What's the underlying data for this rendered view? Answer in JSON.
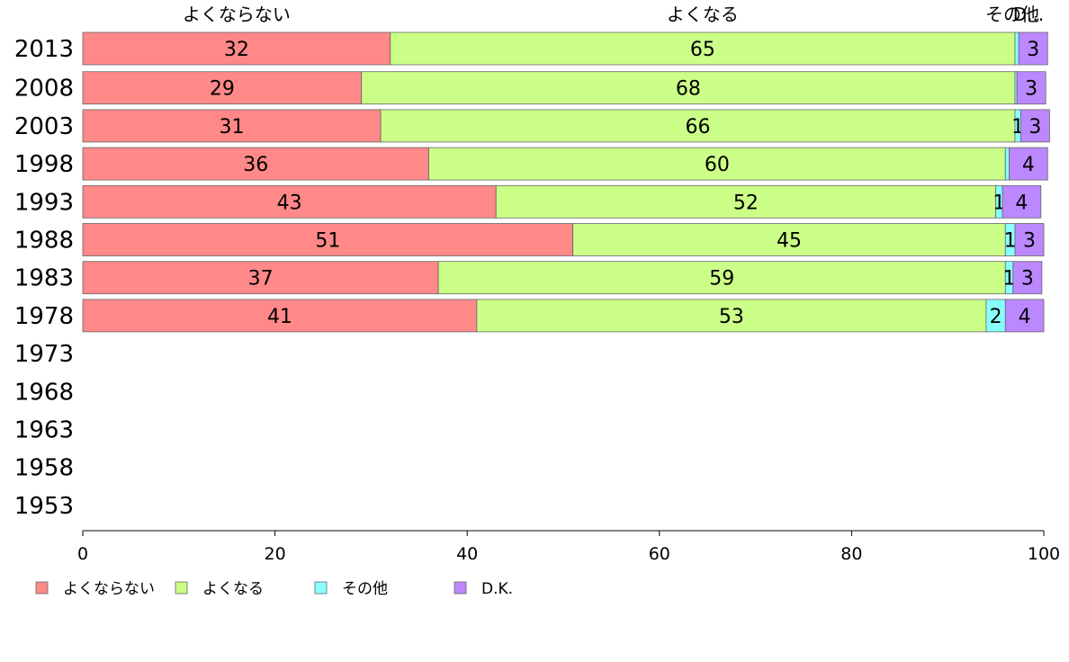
{
  "chart_data": {
    "type": "bar",
    "orientation": "horizontal",
    "stacked": true,
    "categories": [
      "2013",
      "2008",
      "2003",
      "1998",
      "1993",
      "1988",
      "1983",
      "1978",
      "1973",
      "1968",
      "1963",
      "1958",
      "1953"
    ],
    "series": [
      {
        "name": "よくならない",
        "color": "#ff8888",
        "values": [
          32,
          29,
          31,
          36,
          43,
          51,
          37,
          41,
          null,
          null,
          null,
          null,
          null
        ]
      },
      {
        "name": "よくなる",
        "color": "#ccff88",
        "values": [
          65,
          68,
          66,
          60,
          52,
          45,
          59,
          53,
          null,
          null,
          null,
          null,
          null
        ]
      },
      {
        "name": "その他",
        "color": "#88ffff",
        "values": [
          0.4,
          0.2,
          0.6,
          0.4,
          0.7,
          1,
          0.8,
          2,
          null,
          null,
          null,
          null,
          null
        ]
      },
      {
        "name": "D.K.",
        "color": "#bb88ff",
        "values": [
          3,
          3,
          3,
          4,
          4,
          3,
          3,
          4,
          null,
          null,
          null,
          null,
          null
        ]
      }
    ],
    "data_labels": [
      [
        "32",
        "65",
        "",
        "3"
      ],
      [
        "29",
        "68",
        "",
        "3"
      ],
      [
        "31",
        "66",
        "1",
        "3"
      ],
      [
        "36",
        "60",
        "",
        "4"
      ],
      [
        "43",
        "52",
        "1",
        "4"
      ],
      [
        "51",
        "45",
        "1",
        "3"
      ],
      [
        "37",
        "59",
        "1",
        "3"
      ],
      [
        "41",
        "53",
        "2",
        "4"
      ]
    ],
    "top_labels": [
      "よくならない",
      "よくなる",
      "その他",
      "D..."
    ],
    "xlim": [
      0,
      100
    ],
    "xticks": [
      "0",
      "20",
      "40",
      "60",
      "80",
      "100"
    ],
    "legend_position": "bottom",
    "grid": false
  }
}
